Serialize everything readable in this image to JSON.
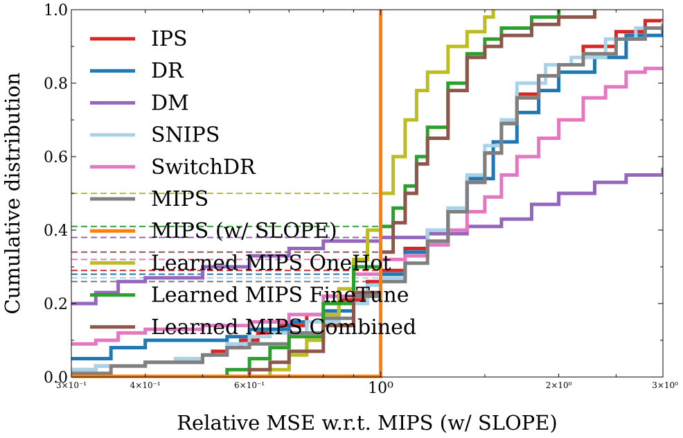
{
  "chart_data": {
    "type": "line",
    "subtype": "empirical-cdf",
    "xlabel": "Relative MSE w.r.t. MIPS (w/ SLOPE)",
    "ylabel": "Cumulative distribution",
    "xscale": "log",
    "xlim": [
      0.3,
      3.0
    ],
    "ylim": [
      0.0,
      1.0
    ],
    "x_ticks": [
      {
        "value": 0.3,
        "label": "3×10⁻¹",
        "kind": "minor"
      },
      {
        "value": 0.4,
        "label": "4×10⁻¹",
        "kind": "minor"
      },
      {
        "value": 0.6,
        "label": "6×10⁻¹",
        "kind": "minor"
      },
      {
        "value": 1.0,
        "label": "10⁰",
        "kind": "major"
      },
      {
        "value": 2.0,
        "label": "2×10⁰",
        "kind": "minor"
      },
      {
        "value": 3.0,
        "label": "3×10⁰",
        "kind": "minor"
      }
    ],
    "y_ticks": [
      {
        "value": 0.0,
        "label": "0.0"
      },
      {
        "value": 0.2,
        "label": "0.2"
      },
      {
        "value": 0.4,
        "label": "0.4"
      },
      {
        "value": 0.6,
        "label": "0.6"
      },
      {
        "value": 0.8,
        "label": "0.8"
      },
      {
        "value": 1.0,
        "label": "1.0"
      }
    ],
    "grid": false,
    "legend_position": "upper-left",
    "reference_line": {
      "x": 1.0,
      "color": "#ff7f0e"
    },
    "series": [
      {
        "name": "IPS",
        "color": "#d62728",
        "hline_y": 0.29,
        "points": [
          [
            0.3,
            0.02
          ],
          [
            0.33,
            0.03
          ],
          [
            0.4,
            0.04
          ],
          [
            0.45,
            0.04
          ],
          [
            0.5,
            0.06
          ],
          [
            0.52,
            0.07
          ],
          [
            0.55,
            0.08
          ],
          [
            0.58,
            0.1
          ],
          [
            0.62,
            0.12
          ],
          [
            0.68,
            0.14
          ],
          [
            0.75,
            0.17
          ],
          [
            0.85,
            0.21
          ],
          [
            0.95,
            0.26
          ],
          [
            1.0,
            0.29
          ],
          [
            1.1,
            0.35
          ],
          [
            1.2,
            0.4
          ],
          [
            1.3,
            0.45
          ],
          [
            1.4,
            0.53
          ],
          [
            1.5,
            0.61
          ],
          [
            1.6,
            0.69
          ],
          [
            1.7,
            0.77
          ],
          [
            1.85,
            0.82
          ],
          [
            2.0,
            0.85
          ],
          [
            2.2,
            0.9
          ],
          [
            2.5,
            0.94
          ],
          [
            2.8,
            0.97
          ],
          [
            3.0,
            0.97
          ]
        ]
      },
      {
        "name": "DR",
        "color": "#1f77b4",
        "hline_y": 0.28,
        "points": [
          [
            0.3,
            0.05
          ],
          [
            0.35,
            0.08
          ],
          [
            0.4,
            0.1
          ],
          [
            0.45,
            0.1
          ],
          [
            0.5,
            0.1
          ],
          [
            0.55,
            0.11
          ],
          [
            0.6,
            0.13
          ],
          [
            0.7,
            0.15
          ],
          [
            0.8,
            0.18
          ],
          [
            0.9,
            0.22
          ],
          [
            1.0,
            0.28
          ],
          [
            1.1,
            0.34
          ],
          [
            1.2,
            0.36
          ],
          [
            1.3,
            0.45
          ],
          [
            1.4,
            0.54
          ],
          [
            1.55,
            0.64
          ],
          [
            1.7,
            0.72
          ],
          [
            1.85,
            0.78
          ],
          [
            2.0,
            0.83
          ],
          [
            2.3,
            0.87
          ],
          [
            2.6,
            0.93
          ],
          [
            3.0,
            0.95
          ]
        ]
      },
      {
        "name": "DM",
        "color": "#9467bd",
        "hline_y": 0.38,
        "points": [
          [
            0.3,
            0.2
          ],
          [
            0.33,
            0.23
          ],
          [
            0.36,
            0.26
          ],
          [
            0.4,
            0.27
          ],
          [
            0.5,
            0.3
          ],
          [
            0.6,
            0.33
          ],
          [
            0.7,
            0.35
          ],
          [
            0.8,
            0.37
          ],
          [
            1.0,
            0.38
          ],
          [
            1.2,
            0.39
          ],
          [
            1.4,
            0.41
          ],
          [
            1.6,
            0.43
          ],
          [
            1.8,
            0.47
          ],
          [
            2.0,
            0.5
          ],
          [
            2.3,
            0.53
          ],
          [
            2.6,
            0.55
          ],
          [
            3.0,
            0.57
          ]
        ]
      },
      {
        "name": "SNIPS",
        "color": "#a6d3e8",
        "hline_y": 0.27,
        "points": [
          [
            0.3,
            0.02
          ],
          [
            0.33,
            0.03
          ],
          [
            0.4,
            0.04
          ],
          [
            0.45,
            0.05
          ],
          [
            0.5,
            0.06
          ],
          [
            0.55,
            0.09
          ],
          [
            0.6,
            0.11
          ],
          [
            0.65,
            0.12
          ],
          [
            0.75,
            0.15
          ],
          [
            0.85,
            0.2
          ],
          [
            0.95,
            0.25
          ],
          [
            1.0,
            0.27
          ],
          [
            1.1,
            0.33
          ],
          [
            1.2,
            0.4
          ],
          [
            1.3,
            0.46
          ],
          [
            1.4,
            0.55
          ],
          [
            1.5,
            0.63
          ],
          [
            1.6,
            0.7
          ],
          [
            1.7,
            0.8
          ],
          [
            1.9,
            0.85
          ],
          [
            2.1,
            0.87
          ],
          [
            2.4,
            0.92
          ],
          [
            2.7,
            0.95
          ],
          [
            3.0,
            0.97
          ]
        ]
      },
      {
        "name": "SwitchDR",
        "color": "#e377c2",
        "hline_y": 0.32,
        "points": [
          [
            0.3,
            0.09
          ],
          [
            0.33,
            0.1
          ],
          [
            0.36,
            0.12
          ],
          [
            0.4,
            0.13
          ],
          [
            0.5,
            0.14
          ],
          [
            0.6,
            0.15
          ],
          [
            0.7,
            0.17
          ],
          [
            0.8,
            0.22
          ],
          [
            0.9,
            0.28
          ],
          [
            1.0,
            0.32
          ],
          [
            1.1,
            0.33
          ],
          [
            1.2,
            0.36
          ],
          [
            1.3,
            0.4
          ],
          [
            1.4,
            0.45
          ],
          [
            1.5,
            0.49
          ],
          [
            1.6,
            0.55
          ],
          [
            1.7,
            0.6
          ],
          [
            1.85,
            0.65
          ],
          [
            2.0,
            0.7
          ],
          [
            2.2,
            0.76
          ],
          [
            2.4,
            0.79
          ],
          [
            2.6,
            0.83
          ],
          [
            2.8,
            0.84
          ],
          [
            3.0,
            0.84
          ]
        ]
      },
      {
        "name": "MIPS",
        "color": "#7f7f7f",
        "hline_y": 0.26,
        "points": [
          [
            0.3,
            0.01
          ],
          [
            0.35,
            0.03
          ],
          [
            0.4,
            0.04
          ],
          [
            0.45,
            0.04
          ],
          [
            0.5,
            0.06
          ],
          [
            0.55,
            0.08
          ],
          [
            0.6,
            0.09
          ],
          [
            0.7,
            0.12
          ],
          [
            0.8,
            0.16
          ],
          [
            0.9,
            0.22
          ],
          [
            1.0,
            0.26
          ],
          [
            1.1,
            0.31
          ],
          [
            1.2,
            0.37
          ],
          [
            1.3,
            0.45
          ],
          [
            1.4,
            0.53
          ],
          [
            1.5,
            0.61
          ],
          [
            1.6,
            0.69
          ],
          [
            1.7,
            0.76
          ],
          [
            1.85,
            0.82
          ],
          [
            2.0,
            0.85
          ],
          [
            2.2,
            0.88
          ],
          [
            2.5,
            0.92
          ],
          [
            2.8,
            0.95
          ],
          [
            3.0,
            0.96
          ]
        ]
      },
      {
        "name": "MIPS (w/ SLOPE)",
        "color": "#ff7f0e",
        "hline_y": null,
        "points": [
          [
            0.3,
            0.0
          ],
          [
            1.0,
            0.0
          ],
          [
            1.0,
            1.0
          ]
        ]
      },
      {
        "name": "Learned MIPS OneHot",
        "color": "#bcbd22",
        "hline_y": 0.5,
        "points": [
          [
            0.3,
            0.0
          ],
          [
            0.6,
            0.0
          ],
          [
            0.65,
            0.02
          ],
          [
            0.7,
            0.06
          ],
          [
            0.75,
            0.1
          ],
          [
            0.8,
            0.17
          ],
          [
            0.85,
            0.24
          ],
          [
            0.9,
            0.32
          ],
          [
            0.95,
            0.4
          ],
          [
            1.0,
            0.5
          ],
          [
            1.05,
            0.6
          ],
          [
            1.1,
            0.7
          ],
          [
            1.15,
            0.78
          ],
          [
            1.2,
            0.83
          ],
          [
            1.3,
            0.9
          ],
          [
            1.4,
            0.94
          ],
          [
            1.5,
            0.98
          ],
          [
            1.55,
            1.0
          ]
        ]
      },
      {
        "name": "Learned MIPS FineTune",
        "color": "#2ca02c",
        "hline_y": 0.41,
        "points": [
          [
            0.3,
            0.0
          ],
          [
            0.5,
            0.0
          ],
          [
            0.55,
            0.02
          ],
          [
            0.6,
            0.05
          ],
          [
            0.65,
            0.08
          ],
          [
            0.7,
            0.11
          ],
          [
            0.8,
            0.2
          ],
          [
            0.9,
            0.3
          ],
          [
            1.0,
            0.41
          ],
          [
            1.05,
            0.46
          ],
          [
            1.1,
            0.52
          ],
          [
            1.15,
            0.6
          ],
          [
            1.2,
            0.68
          ],
          [
            1.3,
            0.8
          ],
          [
            1.4,
            0.88
          ],
          [
            1.5,
            0.92
          ],
          [
            1.6,
            0.95
          ],
          [
            1.8,
            0.98
          ],
          [
            2.0,
            1.0
          ]
        ]
      },
      {
        "name": "Learned MIPS Combined",
        "color": "#8c564b",
        "hline_y": 0.34,
        "points": [
          [
            0.3,
            0.0
          ],
          [
            0.55,
            0.0
          ],
          [
            0.6,
            0.02
          ],
          [
            0.65,
            0.04
          ],
          [
            0.7,
            0.07
          ],
          [
            0.8,
            0.14
          ],
          [
            0.9,
            0.23
          ],
          [
            1.0,
            0.34
          ],
          [
            1.05,
            0.42
          ],
          [
            1.1,
            0.5
          ],
          [
            1.15,
            0.58
          ],
          [
            1.2,
            0.65
          ],
          [
            1.3,
            0.78
          ],
          [
            1.4,
            0.87
          ],
          [
            1.5,
            0.9
          ],
          [
            1.6,
            0.93
          ],
          [
            1.8,
            0.96
          ],
          [
            2.0,
            0.98
          ],
          [
            2.3,
            1.0
          ]
        ]
      }
    ]
  }
}
